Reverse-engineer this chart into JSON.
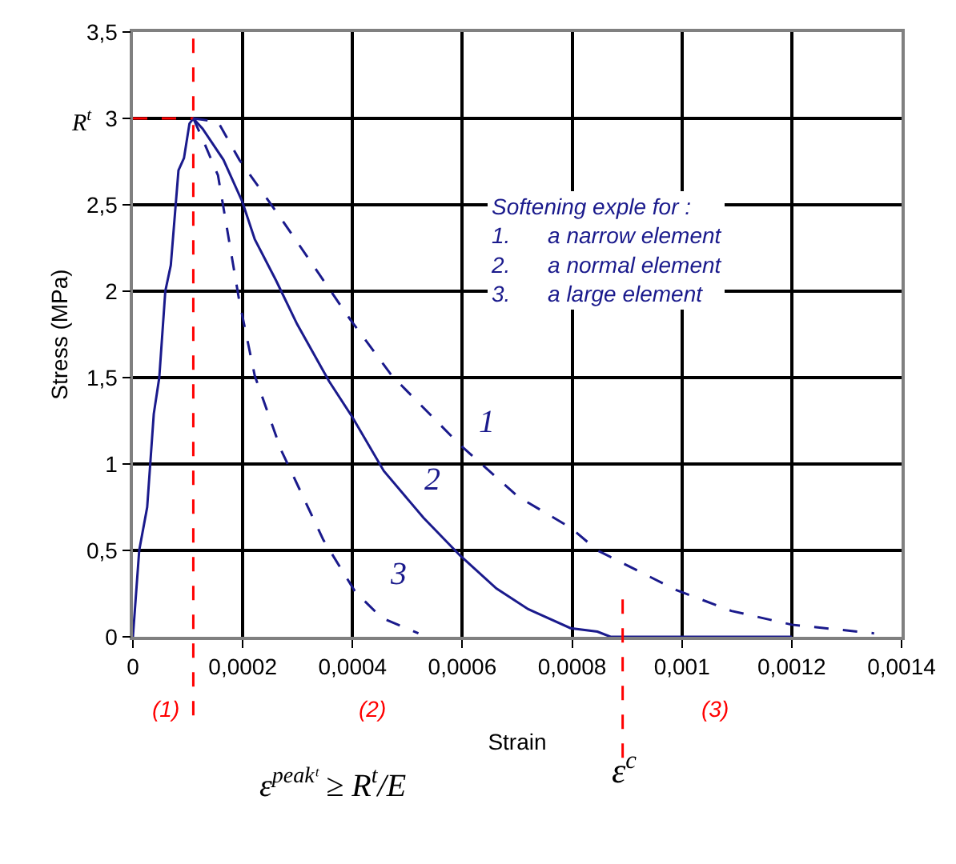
{
  "chart_data": {
    "type": "line",
    "xlabel": "Strain",
    "ylabel": "Stress (MPa)",
    "xlim": [
      0,
      0.0014
    ],
    "ylim": [
      0,
      3.5
    ],
    "xticks": [
      0,
      {
        "value": 0.0002,
        "label": "0,0002"
      },
      {
        "value": 0.0004,
        "label": "0,0004"
      },
      {
        "value": 0.0006,
        "label": "0,0006"
      },
      {
        "value": 0.0008,
        "label": "0,0008"
      },
      {
        "value": 0.001,
        "label": "0,001"
      },
      {
        "value": 0.0012,
        "label": "0,0012"
      },
      {
        "value": 0.0014,
        "label": "0,0014"
      }
    ],
    "yticks": [
      0,
      {
        "value": 0.5,
        "label": "0,5"
      },
      1,
      {
        "value": 1.5,
        "label": "1,5"
      },
      2,
      {
        "value": 2.5,
        "label": "2,5"
      },
      3,
      {
        "value": 3.5,
        "label": "3,5"
      }
    ],
    "grid": true,
    "marker": "none",
    "series": [
      {
        "color": "#1a1a8c",
        "line_style": "dashed",
        "x": [
          0.00011,
          0.000155,
          0.000194,
          0.00027,
          0.000395,
          0.000472,
          0.000596,
          0.000702,
          0.000798,
          0.000846,
          0.00099,
          0.00109,
          0.0012,
          0.00135
        ],
        "values": [
          3.0,
          2.98,
          2.76,
          2.42,
          1.84,
          1.51,
          1.11,
          0.81,
          0.63,
          0.5,
          0.27,
          0.15,
          0.07,
          0.02
        ]
      },
      {
        "color": "#1a1a8c",
        "line_style": "solid",
        "x": [
          0,
          1.15e-05,
          2.6e-05,
          3.8e-05,
          4.8e-05,
          5.9e-05,
          6.9e-05,
          8.3e-05,
          9.3e-05,
          0.000103,
          0.00011,
          0.000127,
          0.000165,
          0.000199,
          0.000222,
          0.000261,
          0.000299,
          0.000357,
          0.0004,
          0.000457,
          0.000529,
          0.000596,
          0.000662,
          0.00072,
          0.000797,
          0.000846,
          0.00087,
          0.0012
        ],
        "values": [
          0,
          0.5,
          0.75,
          1.29,
          1.5,
          2.0,
          2.15,
          2.7,
          2.77,
          2.97,
          3.0,
          2.94,
          2.76,
          2.52,
          2.3,
          2.06,
          1.81,
          1.48,
          1.27,
          0.96,
          0.69,
          0.47,
          0.28,
          0.16,
          0.05,
          0.03,
          0,
          0
        ]
      },
      {
        "color": "#ff0000",
        "line_style": "dashed",
        "x": [
          0,
          0.00011
        ],
        "values": [
          3,
          3
        ]
      },
      {
        "color": "#1a1a8c",
        "line_style": "dashed",
        "x": [
          0.00011,
          0.000127,
          0.000155,
          0.000194,
          0.000222,
          0.00027,
          0.000347,
          0.000405,
          0.000453,
          0.00052
        ],
        "values": [
          3.0,
          2.88,
          2.67,
          1.94,
          1.51,
          1.08,
          0.56,
          0.26,
          0.11,
          0.02
        ]
      }
    ],
    "ref_lines": [
      {
        "axis": "x",
        "value": 0.00011,
        "color": "#ff0000",
        "line_style": "dashed"
      },
      {
        "axis": "x",
        "value": 0.000892,
        "color": "#ff0000",
        "line_style": "dashed"
      }
    ],
    "annotations": [
      "Softening exple for :\n1.      a narrow element\n2.      a normal element\n3.      a large element",
      "1",
      "2",
      "3",
      "R$^{t}$",
      "(1)",
      "(2)",
      "(3)",
      "ε$^{peakᵗ}$ ≥ R$^{t}$/E",
      "ε$^{c}$"
    ]
  }
}
